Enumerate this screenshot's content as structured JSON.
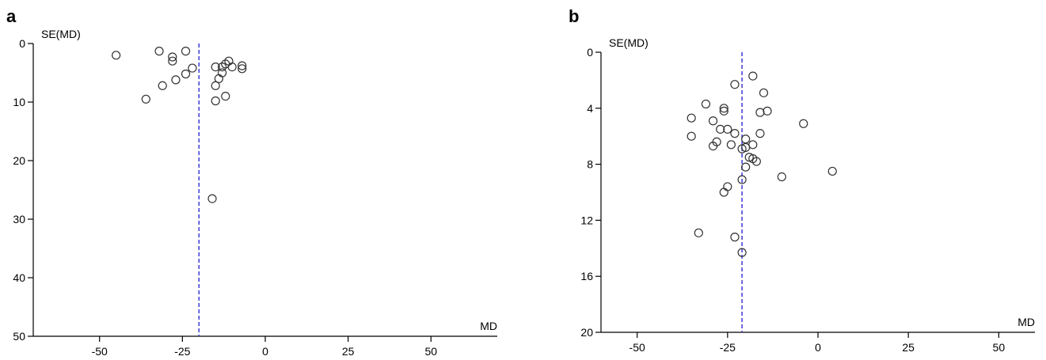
{
  "chart_data": [
    {
      "panel": "a",
      "type": "scatter",
      "ylabel": "SE(MD)",
      "xlabel": "MD",
      "xlim": [
        -70,
        70
      ],
      "ylim": [
        0,
        50
      ],
      "y_inverted": true,
      "xticks": [
        -50,
        -25,
        0,
        25,
        50
      ],
      "yticks": [
        0,
        10,
        20,
        30,
        40,
        50
      ],
      "reference_line_x": -20,
      "grid": false,
      "points": [
        {
          "x": -45,
          "y": 2.0
        },
        {
          "x": -32,
          "y": 1.3
        },
        {
          "x": -28,
          "y": 2.3
        },
        {
          "x": -28,
          "y": 3.0
        },
        {
          "x": -24,
          "y": 1.3
        },
        {
          "x": -22,
          "y": 4.2
        },
        {
          "x": -24,
          "y": 5.2
        },
        {
          "x": -27,
          "y": 6.2
        },
        {
          "x": -31,
          "y": 7.2
        },
        {
          "x": -36,
          "y": 9.5
        },
        {
          "x": -15,
          "y": 4.0
        },
        {
          "x": -13,
          "y": 4.0
        },
        {
          "x": -12,
          "y": 3.5
        },
        {
          "x": -11,
          "y": 3.0
        },
        {
          "x": -10,
          "y": 4.0
        },
        {
          "x": -7,
          "y": 3.8
        },
        {
          "x": -7,
          "y": 4.3
        },
        {
          "x": -13,
          "y": 5.0
        },
        {
          "x": -14,
          "y": 6.0
        },
        {
          "x": -15,
          "y": 7.2
        },
        {
          "x": -12,
          "y": 9.0
        },
        {
          "x": -15,
          "y": 9.8
        },
        {
          "x": -16,
          "y": 26.5
        }
      ]
    },
    {
      "panel": "b",
      "type": "scatter",
      "ylabel": "SE(MD)",
      "xlabel": "MD",
      "xlim": [
        -60,
        60
      ],
      "ylim": [
        0,
        20
      ],
      "y_inverted": true,
      "xticks": [
        -50,
        -25,
        0,
        25,
        50
      ],
      "yticks": [
        0,
        4,
        8,
        12,
        16,
        20
      ],
      "reference_line_x": -21,
      "grid": false,
      "points": [
        {
          "x": -18,
          "y": 1.7
        },
        {
          "x": -23,
          "y": 2.3
        },
        {
          "x": -15,
          "y": 2.9
        },
        {
          "x": -31,
          "y": 3.7
        },
        {
          "x": -26,
          "y": 4.0
        },
        {
          "x": -26,
          "y": 4.2
        },
        {
          "x": -16,
          "y": 4.3
        },
        {
          "x": -14,
          "y": 4.2
        },
        {
          "x": -35,
          "y": 4.7
        },
        {
          "x": -29,
          "y": 4.9
        },
        {
          "x": -4,
          "y": 5.1
        },
        {
          "x": -27,
          "y": 5.5
        },
        {
          "x": -25,
          "y": 5.5
        },
        {
          "x": -23,
          "y": 5.8
        },
        {
          "x": -16,
          "y": 5.8
        },
        {
          "x": -35,
          "y": 6.0
        },
        {
          "x": -20,
          "y": 6.2
        },
        {
          "x": -28,
          "y": 6.4
        },
        {
          "x": -24,
          "y": 6.6
        },
        {
          "x": -29,
          "y": 6.7
        },
        {
          "x": -18,
          "y": 6.6
        },
        {
          "x": -20,
          "y": 6.8
        },
        {
          "x": -21,
          "y": 6.9
        },
        {
          "x": -19,
          "y": 7.5
        },
        {
          "x": -18,
          "y": 7.6
        },
        {
          "x": -17,
          "y": 7.8
        },
        {
          "x": -20,
          "y": 8.2
        },
        {
          "x": -10,
          "y": 8.9
        },
        {
          "x": 4,
          "y": 8.5
        },
        {
          "x": -21,
          "y": 9.1
        },
        {
          "x": -25,
          "y": 9.6
        },
        {
          "x": -26,
          "y": 10.0
        },
        {
          "x": -33,
          "y": 12.9
        },
        {
          "x": -23,
          "y": 13.2
        },
        {
          "x": -21,
          "y": 14.3
        }
      ]
    }
  ]
}
